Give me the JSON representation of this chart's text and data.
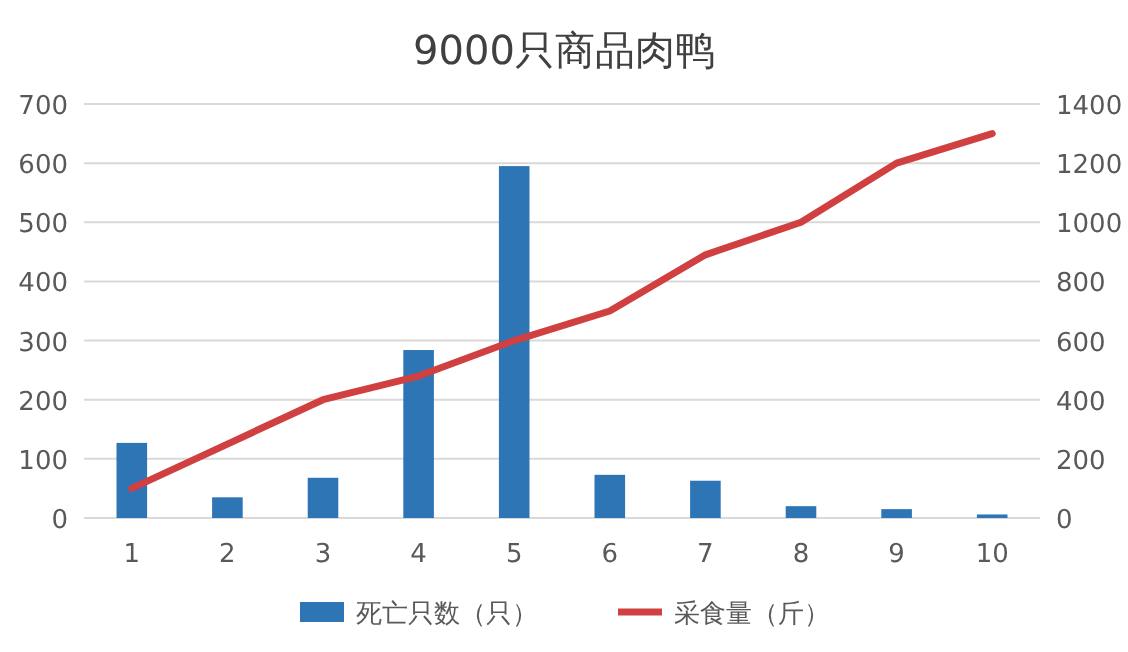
{
  "chart_data": {
    "type": "bar",
    "title": "9000只商品肉鸭",
    "legend": "bottom",
    "grid": "y",
    "categories": [
      "1",
      "2",
      "3",
      "4",
      "5",
      "6",
      "7",
      "8",
      "9",
      "10"
    ],
    "ylim": [
      0,
      700
    ],
    "yticks": [
      0,
      100,
      200,
      300,
      400,
      500,
      600,
      700
    ],
    "y2lim": [
      0,
      1400
    ],
    "y2ticks": [
      0,
      200,
      400,
      600,
      800,
      1000,
      1200,
      1400
    ],
    "series": [
      {
        "name": "死亡只数（只）",
        "color": "#2e75b6",
        "values": [
          127,
          35,
          68,
          284,
          595,
          73,
          63,
          20,
          15,
          6
        ]
      },
      {
        "name": "采食量（斤）",
        "type": "line",
        "axis": "y2",
        "color": "#d04040",
        "values": [
          100,
          250,
          400,
          480,
          600,
          700,
          890,
          1000,
          1200,
          1300
        ]
      }
    ]
  }
}
